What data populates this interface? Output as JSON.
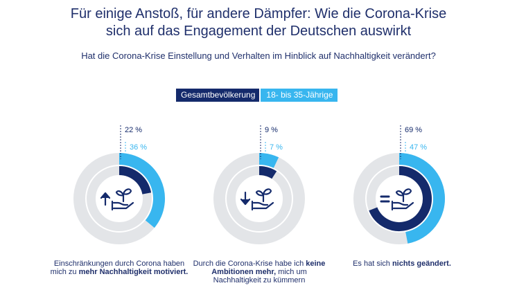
{
  "header": {
    "title_line1": "Für einige Anstoß, für andere Dämpfer: Wie die Corona-Krise",
    "title_line2": "sich auf das Engagement der Deutschen auswirkt",
    "subtitle": "Hat die Corona-Krise Einstellung und Verhalten im Hinblick auf Nachhaltigkeit verändert?"
  },
  "legend": {
    "total_label": "Gesamtbevölkerung",
    "young_label": "18- bis 35-Jährige"
  },
  "colors": {
    "dark_blue": "#142a6b",
    "light_blue": "#38b6ef",
    "ring_gray": "#e3e5e8",
    "text_navy": "#1f2f6b"
  },
  "chart_data": [
    {
      "type": "pie",
      "variant": "concentric-donut",
      "series": [
        {
          "name": "Gesamtbevölkerung",
          "value": 22
        },
        {
          "name": "18- bis 35-Jährige",
          "value": 36
        }
      ],
      "value_labels": [
        "22 %",
        "36 %"
      ],
      "icon": "arrow-up-icon",
      "description": {
        "pre": "Einschränkungen durch Corona haben mich zu ",
        "bold": "mehr Nachhaltigkeit motiviert.",
        "post": ""
      }
    },
    {
      "type": "pie",
      "variant": "concentric-donut",
      "series": [
        {
          "name": "Gesamtbevölkerung",
          "value": 9
        },
        {
          "name": "18- bis 35-Jährige",
          "value": 7
        }
      ],
      "value_labels": [
        "9 %",
        "7 %"
      ],
      "icon": "arrow-down-icon",
      "description": {
        "pre": "Durch die Corona-Krise habe ich ",
        "bold": "keine Ambitionen mehr,",
        "post": " mich um Nachhaltigkeit zu kümmern"
      }
    },
    {
      "type": "pie",
      "variant": "concentric-donut",
      "series": [
        {
          "name": "Gesamtbevölkerung",
          "value": 69
        },
        {
          "name": "18- bis 35-Jährige",
          "value": 47
        }
      ],
      "value_labels": [
        "69 %",
        "47 %"
      ],
      "icon": "equals-icon",
      "description": {
        "pre": "Es hat sich ",
        "bold": "nichts geändert.",
        "post": ""
      }
    }
  ]
}
